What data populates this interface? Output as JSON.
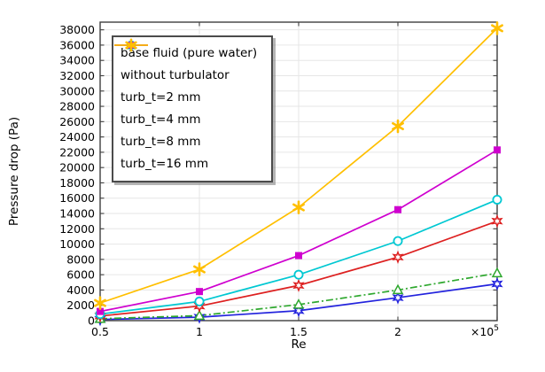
{
  "window": {
    "kind": "simulation-result-plot",
    "background": "#ffffff"
  },
  "axes": {
    "xlabel": "Re",
    "x_multiplier_base": "×10",
    "x_multiplier_exp": "5",
    "ylabel": "Pressure drop (Pa)",
    "x_tick_labels": [
      "0.5",
      "1",
      "1.5",
      "2"
    ],
    "y_tick_labels": [
      "0",
      "2000",
      "4000",
      "6000",
      "8000",
      "10000",
      "12000",
      "14000",
      "16000",
      "18000",
      "20000",
      "22000",
      "24000",
      "26000",
      "28000",
      "30000",
      "32000",
      "34000",
      "36000",
      "38000"
    ],
    "frame_color": "#3f3f3f",
    "grid_color": "#e6e6e6",
    "text_color": "#000000"
  },
  "chart_data": {
    "type": "line",
    "title": "",
    "xlabel": "Re",
    "x_unit": "×10^5",
    "ylabel": "Pressure drop (Pa)",
    "x": [
      0.5,
      1,
      1.5,
      2,
      2.5
    ],
    "xlim": [
      0.5,
      2.5
    ],
    "ylim": [
      0,
      39000
    ],
    "y_tick_step": 2000,
    "x_grid_ticks": [
      1,
      1.5,
      2
    ],
    "grid": true,
    "legend_position": "top-left",
    "series": [
      {
        "name": "base fluid (pure water)",
        "color": "#2323dd",
        "marker": "hexagram",
        "line_style": "solid",
        "values": [
          150,
          450,
          1300,
          3000,
          4800
        ]
      },
      {
        "name": "without turbulator",
        "color": "#2fa82f",
        "marker": "triangle",
        "line_style": "dash-dot",
        "values": [
          250,
          650,
          2100,
          4000,
          6200
        ]
      },
      {
        "name": "turb_t=2 mm",
        "color": "#dd2020",
        "marker": "hexagram",
        "line_style": "solid",
        "values": [
          600,
          1900,
          4600,
          8300,
          13000
        ]
      },
      {
        "name": "turb_t=4 mm",
        "color": "#00c8d2",
        "marker": "circle",
        "line_style": "solid",
        "values": [
          850,
          2500,
          6000,
          10400,
          15800
        ]
      },
      {
        "name": "turb_t=8 mm",
        "color": "#cf00cf",
        "marker": "square",
        "line_style": "solid",
        "values": [
          1200,
          3800,
          8500,
          14500,
          22300
        ]
      },
      {
        "name": "turb_t=16 mm",
        "color": "#ffbf00",
        "marker": "asterisk",
        "line_style": "solid",
        "values": [
          2300,
          6700,
          14800,
          25400,
          38200
        ]
      }
    ]
  }
}
